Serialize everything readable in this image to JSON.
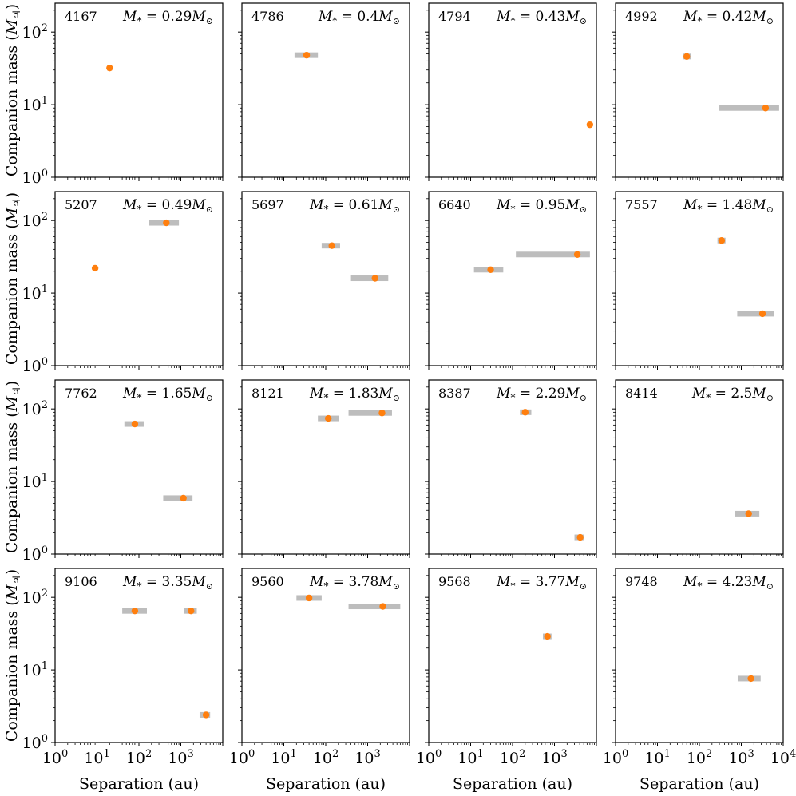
{
  "figure": {
    "ylabel": "Companion mass (",
    "ylabel_symbol": "M",
    "ylabel_sub": "♃",
    "ylabel_close": ")",
    "xlabel": "Separation (au)",
    "x_ticks": [
      "10",
      "10",
      "10",
      "10",
      "10"
    ],
    "x_tick_exps": [
      "0",
      "1",
      "2",
      "3",
      "4"
    ],
    "y_ticks": [
      "10",
      "10",
      "10"
    ],
    "y_tick_exps": [
      "0",
      "1",
      "2"
    ],
    "mass_label_prefix": "M",
    "mass_label_sub": "*",
    "mass_label_eq": " = ",
    "mass_label_unit": "M",
    "mass_label_unit_sub": "⊙",
    "colors": {
      "point": "#ff7f0e",
      "errorbar": "#bdbdbd",
      "axes": "#000000"
    }
  },
  "chart_data": {
    "type": "scatter",
    "layout": "4x4 grid of panels, shared log axes",
    "xlabel": "Separation (au)",
    "ylabel": "Companion mass (M♃)",
    "xscale": "log",
    "yscale": "log",
    "xlim": [
      1,
      10000
    ],
    "ylim": [
      1,
      250
    ],
    "grid": false,
    "panels": [
      {
        "id": "4167",
        "mstar": "0.29",
        "points": [
          {
            "x": 20,
            "y": 32,
            "xerr": [
              20,
              20
            ]
          }
        ]
      },
      {
        "id": "4786",
        "mstar": "0.4",
        "points": [
          {
            "x": 35,
            "y": 48,
            "xerr": [
              18,
              65
            ]
          }
        ]
      },
      {
        "id": "4794",
        "mstar": "0.43",
        "points": [
          {
            "x": 7000,
            "y": 5.3,
            "xerr": [
              7000,
              7000
            ]
          }
        ]
      },
      {
        "id": "4992",
        "mstar": "0.42",
        "points": [
          {
            "x": 50,
            "y": 46,
            "xerr": [
              40,
              62
            ]
          },
          {
            "x": 3800,
            "y": 9.0,
            "xerr": [
              300,
              8000
            ]
          }
        ]
      },
      {
        "id": "5207",
        "mstar": "0.49",
        "points": [
          {
            "x": 9,
            "y": 22,
            "xerr": [
              9,
              9
            ]
          },
          {
            "x": 450,
            "y": 93,
            "xerr": [
              170,
              900
            ]
          }
        ]
      },
      {
        "id": "5697",
        "mstar": "0.61",
        "points": [
          {
            "x": 140,
            "y": 45,
            "xerr": [
              80,
              220
            ]
          },
          {
            "x": 1500,
            "y": 16,
            "xerr": [
              400,
              3100
            ]
          }
        ]
      },
      {
        "id": "6640",
        "mstar": "0.95",
        "points": [
          {
            "x": 30,
            "y": 21,
            "xerr": [
              12,
              60
            ]
          },
          {
            "x": 3500,
            "y": 34,
            "xerr": [
              120,
              7000
            ]
          }
        ]
      },
      {
        "id": "7557",
        "mstar": "1.48",
        "points": [
          {
            "x": 340,
            "y": 53,
            "xerr": [
              270,
              420
            ]
          },
          {
            "x": 3200,
            "y": 5.2,
            "xerr": [
              800,
              6000
            ]
          }
        ]
      },
      {
        "id": "7762",
        "mstar": "1.65",
        "points": [
          {
            "x": 80,
            "y": 62,
            "xerr": [
              45,
              130
            ]
          },
          {
            "x": 1150,
            "y": 5.9,
            "xerr": [
              380,
              1900
            ]
          }
        ]
      },
      {
        "id": "8121",
        "mstar": "1.83",
        "points": [
          {
            "x": 115,
            "y": 74,
            "xerr": [
              65,
              210
            ]
          },
          {
            "x": 2200,
            "y": 88,
            "xerr": [
              350,
              3800
            ]
          }
        ]
      },
      {
        "id": "8387",
        "mstar": "2.29",
        "points": [
          {
            "x": 200,
            "y": 90,
            "xerr": [
              150,
              280
            ]
          },
          {
            "x": 4100,
            "y": 1.7,
            "xerr": [
              3000,
              5000
            ]
          }
        ]
      },
      {
        "id": "8414",
        "mstar": "2.5",
        "points": [
          {
            "x": 1500,
            "y": 3.6,
            "xerr": [
              700,
              2700
            ]
          }
        ]
      },
      {
        "id": "9106",
        "mstar": "3.35",
        "points": [
          {
            "x": 80,
            "y": 65,
            "xerr": [
              40,
              155
            ]
          },
          {
            "x": 1750,
            "y": 65,
            "xerr": [
              1200,
              2400
            ]
          },
          {
            "x": 4000,
            "y": 2.4,
            "xerr": [
              2800,
              5000
            ]
          }
        ]
      },
      {
        "id": "9560",
        "mstar": "3.78",
        "points": [
          {
            "x": 40,
            "y": 98,
            "xerr": [
              20,
              80
            ]
          },
          {
            "x": 2300,
            "y": 75,
            "xerr": [
              350,
              6000
            ]
          }
        ]
      },
      {
        "id": "9568",
        "mstar": "3.77",
        "points": [
          {
            "x": 680,
            "y": 29,
            "xerr": [
              530,
              850
            ]
          }
        ]
      },
      {
        "id": "9748",
        "mstar": "4.23",
        "points": [
          {
            "x": 1700,
            "y": 7.6,
            "xerr": [
              820,
              2900
            ]
          }
        ]
      }
    ]
  }
}
